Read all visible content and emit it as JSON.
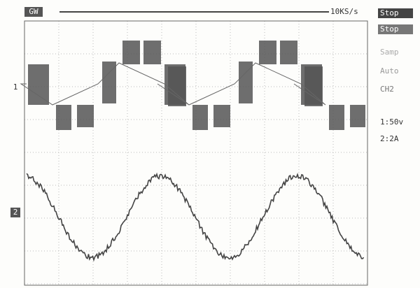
{
  "header": {
    "brand": "GW",
    "sample_rate": "10KS/s"
  },
  "menu": [
    "Stop",
    "Stop",
    "Samp",
    "Auto",
    "CH2"
  ],
  "channels": [
    {
      "marker": "1",
      "scale": "1:50v"
    },
    {
      "marker": "2",
      "scale": "2:2A"
    }
  ]
}
